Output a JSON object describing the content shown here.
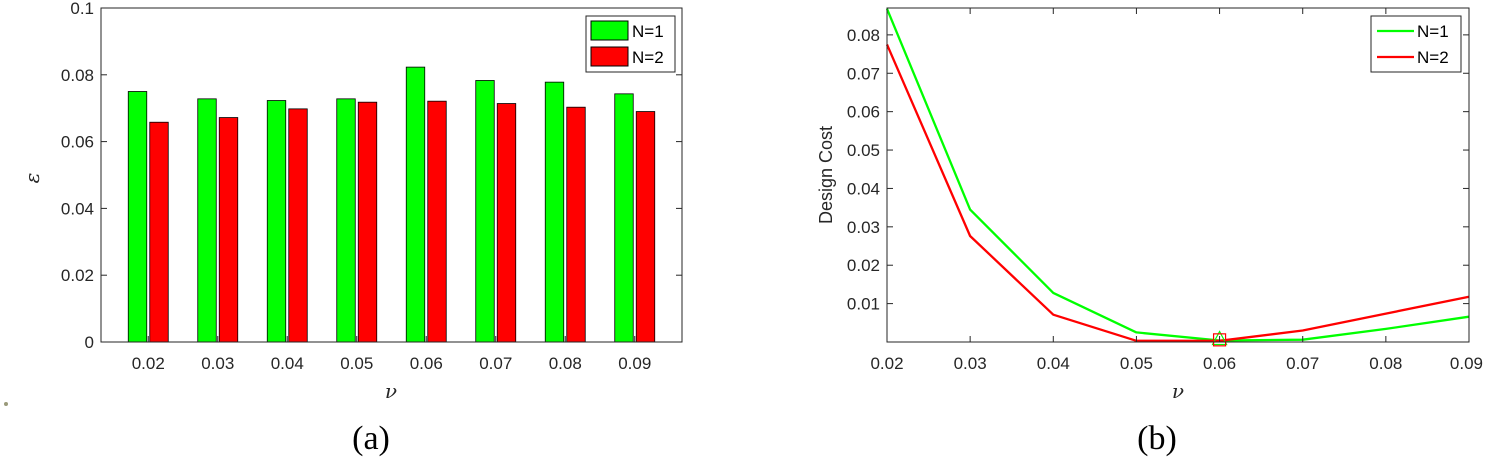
{
  "chart_data": [
    {
      "type": "bar",
      "caption": "(a)",
      "xlabel": "ν",
      "ylabel": "ε",
      "categories": [
        "0.02",
        "0.03",
        "0.04",
        "0.05",
        "0.06",
        "0.07",
        "0.08",
        "0.09"
      ],
      "ylim": [
        0,
        0.1
      ],
      "yticks": [
        "0",
        "0.02",
        "0.04",
        "0.06",
        "0.08",
        "0.1"
      ],
      "grid": false,
      "legend_position": "top-right",
      "series": [
        {
          "name": "N=1",
          "color": "#00ff00",
          "values": [
            0.075,
            0.0728,
            0.0723,
            0.0728,
            0.0823,
            0.0783,
            0.0778,
            0.0743
          ]
        },
        {
          "name": "N=2",
          "color": "#ff0000",
          "values": [
            0.0658,
            0.0672,
            0.0698,
            0.0718,
            0.0721,
            0.0714,
            0.0703,
            0.069
          ]
        }
      ]
    },
    {
      "type": "line",
      "caption": "(b)",
      "xlabel": "ν",
      "ylabel": "Design Cost",
      "x": [
        0.02,
        0.03,
        0.04,
        0.05,
        0.06,
        0.07,
        0.08,
        0.09
      ],
      "xticks": [
        "0.02",
        "0.03",
        "0.04",
        "0.05",
        "0.06",
        "0.07",
        "0.08",
        "0.09"
      ],
      "xlim": [
        0.02,
        0.09
      ],
      "ylim": [
        0,
        0.087
      ],
      "yticks": [
        "0.01",
        "0.02",
        "0.03",
        "0.04",
        "0.05",
        "0.06",
        "0.07",
        "0.08"
      ],
      "grid": false,
      "legend_position": "top-right",
      "series": [
        {
          "name": "N=1",
          "color": "#00ff00",
          "values": [
            0.0868,
            0.0345,
            0.0128,
            0.0025,
            0.0004,
            0.0006,
            0.0034,
            0.0066
          ]
        },
        {
          "name": "N=2",
          "color": "#ff0000",
          "values": [
            0.0775,
            0.0276,
            0.0071,
            0.0003,
            0.0003,
            0.003,
            0.0074,
            0.0118
          ]
        }
      ],
      "markers": [
        {
          "series": "N=1",
          "shape": "triangle",
          "x": 0.06,
          "y": 0.0004
        },
        {
          "series": "N=2",
          "shape": "square",
          "x": 0.06,
          "y": 0.0003
        }
      ]
    }
  ]
}
